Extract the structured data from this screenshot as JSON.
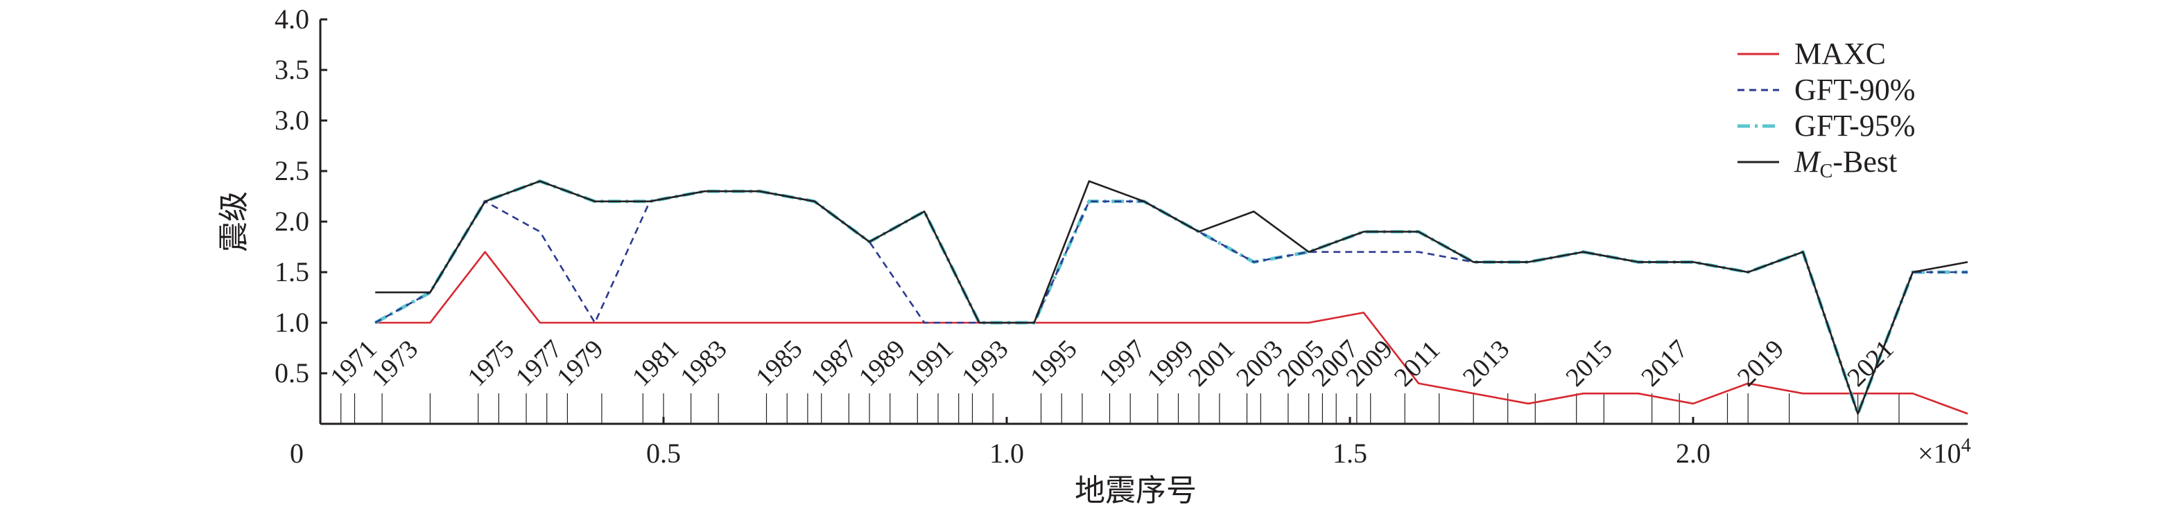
{
  "chart_data": {
    "type": "line",
    "xlabel": "地震序号",
    "ylabel": "震级",
    "x_multiplier_label": "×10",
    "x_multiplier_exponent": "4",
    "xlim": [
      0,
      24000
    ],
    "ylim": [
      0,
      4.0
    ],
    "x_ticks": [
      {
        "value": 0,
        "label": "0"
      },
      {
        "value": 5000,
        "label": "0.5"
      },
      {
        "value": 10000,
        "label": "1.0"
      },
      {
        "value": 15000,
        "label": "1.5"
      },
      {
        "value": 20000,
        "label": "2.0"
      }
    ],
    "y_ticks": [
      {
        "value": 0.5,
        "label": "0.5"
      },
      {
        "value": 1.0,
        "label": "1.0"
      },
      {
        "value": 1.5,
        "label": "1.5"
      },
      {
        "value": 2.0,
        "label": "2.0"
      },
      {
        "value": 2.5,
        "label": "2.5"
      },
      {
        "value": 3.0,
        "label": "3.0"
      },
      {
        "value": 3.5,
        "label": "3.5"
      },
      {
        "value": 4.0,
        "label": "4.0"
      }
    ],
    "grid": false,
    "legend_position": "top-right",
    "series": [
      {
        "name": "MAXC",
        "color": "#d7282f",
        "style": "solid",
        "points": [
          [
            800,
            1.0
          ],
          [
            1600,
            1.0
          ],
          [
            2400,
            1.7
          ],
          [
            3200,
            1.0
          ],
          [
            4000,
            1.0
          ],
          [
            4800,
            1.0
          ],
          [
            5600,
            1.0
          ],
          [
            6400,
            1.0
          ],
          [
            7200,
            1.0
          ],
          [
            8000,
            1.0
          ],
          [
            8800,
            1.0
          ],
          [
            9600,
            1.0
          ],
          [
            10400,
            1.0
          ],
          [
            11200,
            1.0
          ],
          [
            12000,
            1.0
          ],
          [
            12800,
            1.0
          ],
          [
            13600,
            1.0
          ],
          [
            14400,
            1.0
          ],
          [
            15200,
            1.1
          ],
          [
            16000,
            0.4
          ],
          [
            16800,
            0.3
          ],
          [
            17600,
            0.2
          ],
          [
            18400,
            0.3
          ],
          [
            19200,
            0.3
          ],
          [
            20000,
            0.2
          ],
          [
            20800,
            0.4
          ],
          [
            21600,
            0.3
          ],
          [
            22400,
            0.3
          ],
          [
            23200,
            0.3
          ],
          [
            24000,
            0.1
          ]
        ]
      },
      {
        "name": "GFT-90%",
        "color": "#2b3990",
        "style": "dashed",
        "points": [
          [
            800,
            1.0
          ],
          [
            1600,
            1.3
          ],
          [
            2400,
            2.2
          ],
          [
            3200,
            1.9
          ],
          [
            4000,
            1.0
          ],
          [
            4800,
            2.2
          ],
          [
            5600,
            2.3
          ],
          [
            6400,
            2.3
          ],
          [
            7200,
            2.2
          ],
          [
            8000,
            1.8
          ],
          [
            8800,
            1.0
          ],
          [
            9600,
            1.0
          ],
          [
            10400,
            1.0
          ],
          [
            11200,
            2.2
          ],
          [
            12000,
            2.2
          ],
          [
            12800,
            1.9
          ],
          [
            13600,
            1.6
          ],
          [
            14400,
            1.7
          ],
          [
            15200,
            1.7
          ],
          [
            16000,
            1.7
          ],
          [
            16800,
            1.6
          ],
          [
            17600,
            1.6
          ],
          [
            18400,
            1.7
          ],
          [
            19200,
            1.6
          ],
          [
            20000,
            1.6
          ],
          [
            20800,
            1.5
          ],
          [
            21600,
            1.7
          ],
          [
            22400,
            0.1
          ],
          [
            23200,
            1.5
          ],
          [
            24000,
            1.5
          ]
        ]
      },
      {
        "name": "GFT-95%",
        "color": "#5bc5cd",
        "style": "dashdot",
        "points": [
          [
            800,
            1.0
          ],
          [
            1600,
            1.3
          ],
          [
            2400,
            2.2
          ],
          [
            3200,
            2.4
          ],
          [
            4000,
            2.2
          ],
          [
            4800,
            2.2
          ],
          [
            5600,
            2.3
          ],
          [
            6400,
            2.3
          ],
          [
            7200,
            2.2
          ],
          [
            8000,
            1.8
          ],
          [
            8800,
            2.1
          ],
          [
            9600,
            1.0
          ],
          [
            10400,
            1.0
          ],
          [
            11200,
            2.2
          ],
          [
            12000,
            2.2
          ],
          [
            12800,
            1.9
          ],
          [
            13600,
            1.6
          ],
          [
            14400,
            1.7
          ],
          [
            15200,
            1.9
          ],
          [
            16000,
            1.9
          ],
          [
            16800,
            1.6
          ],
          [
            17600,
            1.6
          ],
          [
            18400,
            1.7
          ],
          [
            19200,
            1.6
          ],
          [
            20000,
            1.6
          ],
          [
            20800,
            1.5
          ],
          [
            21600,
            1.7
          ],
          [
            22400,
            0.1
          ],
          [
            23200,
            1.5
          ],
          [
            24000,
            1.5
          ]
        ]
      },
      {
        "name": "M_C-Best",
        "color": "#231f20",
        "style": "solid",
        "points": [
          [
            800,
            1.3
          ],
          [
            1600,
            1.3
          ],
          [
            2400,
            2.2
          ],
          [
            3200,
            2.4
          ],
          [
            4000,
            2.2
          ],
          [
            4800,
            2.2
          ],
          [
            5600,
            2.3
          ],
          [
            6400,
            2.3
          ],
          [
            7200,
            2.2
          ],
          [
            8000,
            1.8
          ],
          [
            8800,
            2.1
          ],
          [
            9600,
            1.0
          ],
          [
            10400,
            1.0
          ],
          [
            11200,
            2.4
          ],
          [
            12000,
            2.2
          ],
          [
            12800,
            1.9
          ],
          [
            13600,
            2.1
          ],
          [
            14400,
            1.7
          ],
          [
            15200,
            1.9
          ],
          [
            16000,
            1.9
          ],
          [
            16800,
            1.6
          ],
          [
            17600,
            1.6
          ],
          [
            18400,
            1.7
          ],
          [
            19200,
            1.6
          ],
          [
            20000,
            1.6
          ],
          [
            20800,
            1.5
          ],
          [
            21600,
            1.7
          ],
          [
            22400,
            0.1
          ],
          [
            23200,
            1.5
          ],
          [
            24000,
            1.6
          ]
        ]
      }
    ],
    "legend": [
      {
        "key": "maxc",
        "label": "MAXC",
        "color": "#d7282f",
        "style": "solid"
      },
      {
        "key": "gft90",
        "label": "GFT-90%",
        "color": "#2b3990",
        "style": "dashed"
      },
      {
        "key": "gft95",
        "label": "GFT-95%",
        "color": "#5bc5cd",
        "style": "dashdot"
      },
      {
        "key": "mcbest",
        "label_main": "M",
        "label_sub": "C",
        "label_tail": "-Best",
        "color": "#231f20",
        "style": "solid"
      }
    ],
    "year_markers": [
      {
        "year": "1971",
        "x": 300
      },
      {
        "year": "1973",
        "x": 900
      },
      {
        "year": "1975",
        "x": 2300
      },
      {
        "year": "1977",
        "x": 3000
      },
      {
        "year": "1979",
        "x": 3600
      },
      {
        "year": "1981",
        "x": 4700
      },
      {
        "year": "1983",
        "x": 5400
      },
      {
        "year": "1985",
        "x": 6500
      },
      {
        "year": "1987",
        "x": 7300
      },
      {
        "year": "1989",
        "x": 8000
      },
      {
        "year": "1991",
        "x": 8700
      },
      {
        "year": "1993",
        "x": 9500
      },
      {
        "year": "1995",
        "x": 10500
      },
      {
        "year": "1997",
        "x": 11500
      },
      {
        "year": "1999",
        "x": 12200
      },
      {
        "year": "2001",
        "x": 12800
      },
      {
        "year": "2003",
        "x": 13500
      },
      {
        "year": "2005",
        "x": 14100
      },
      {
        "year": "2007",
        "x": 14600
      },
      {
        "year": "2009",
        "x": 15100
      },
      {
        "year": "2011",
        "x": 15800
      },
      {
        "year": "2013",
        "x": 16800
      },
      {
        "year": "2015",
        "x": 18300
      },
      {
        "year": "2017",
        "x": 19400
      },
      {
        "year": "2019",
        "x": 20800
      },
      {
        "year": "2021",
        "x": 22400
      }
    ],
    "boundary_ticks": [
      300,
      500,
      900,
      1600,
      2300,
      2600,
      3000,
      3300,
      3600,
      4100,
      4700,
      5000,
      5400,
      5800,
      6500,
      6800,
      7100,
      7300,
      7700,
      8000,
      8300,
      8700,
      9000,
      9300,
      9500,
      9800,
      10500,
      10800,
      11100,
      11500,
      11800,
      12200,
      12500,
      12800,
      13100,
      13500,
      13700,
      14100,
      14400,
      14600,
      14800,
      15100,
      15300,
      15800,
      16300,
      16800,
      17300,
      17700,
      18300,
      18700,
      19400,
      19800,
      20500,
      20800,
      21400,
      22400,
      23000
    ]
  }
}
